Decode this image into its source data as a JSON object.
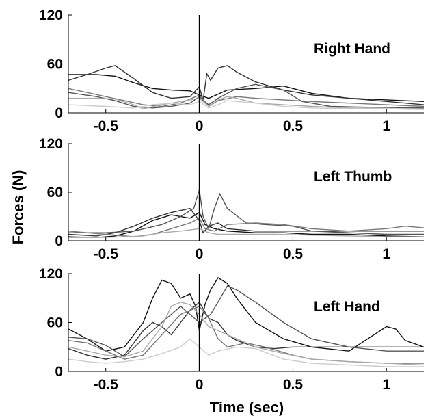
{
  "chart_data": [
    {
      "type": "line",
      "title": "Right Hand",
      "xlim": [
        -0.7,
        1.2
      ],
      "ylim": [
        0,
        120
      ],
      "xticks": [
        -0.5,
        0,
        0.5,
        1
      ],
      "xtick_labels": [
        "-0.5",
        "0",
        "0.5",
        "1"
      ],
      "yticks": [
        0,
        60,
        120
      ],
      "ytick_labels": [
        "0",
        "60",
        "120"
      ],
      "vline_x": 0,
      "series": [
        {
          "color": "#111111",
          "x": [
            -0.7,
            -0.55,
            -0.45,
            -0.35,
            -0.25,
            -0.15,
            -0.05,
            0,
            0.05,
            0.15,
            0.3,
            0.45,
            0.6,
            0.8,
            1.0,
            1.2
          ],
          "y": [
            47,
            47,
            45,
            37,
            30,
            28,
            27,
            22,
            18,
            28,
            30,
            33,
            24,
            18,
            16,
            14
          ]
        },
        {
          "color": "#333333",
          "x": [
            -0.7,
            -0.6,
            -0.5,
            -0.45,
            -0.35,
            -0.25,
            -0.15,
            -0.05,
            0,
            0.02,
            0.04,
            0.06,
            0.1,
            0.15,
            0.2,
            0.3,
            0.45,
            0.6,
            0.8,
            1.0,
            1.2
          ],
          "y": [
            40,
            47,
            55,
            58,
            42,
            25,
            18,
            20,
            32,
            15,
            48,
            40,
            55,
            58,
            50,
            38,
            28,
            22,
            18,
            14,
            10
          ]
        },
        {
          "color": "#555555",
          "x": [
            -0.7,
            -0.55,
            -0.45,
            -0.35,
            -0.25,
            -0.15,
            -0.05,
            0,
            0.05,
            0.1,
            0.2,
            0.3,
            0.45,
            0.55,
            0.7,
            0.9,
            1.2
          ],
          "y": [
            25,
            20,
            15,
            8,
            6,
            8,
            12,
            20,
            10,
            18,
            30,
            35,
            28,
            14,
            8,
            7,
            6
          ]
        },
        {
          "color": "#777777",
          "x": [
            -0.7,
            -0.6,
            -0.5,
            -0.4,
            -0.3,
            -0.2,
            -0.1,
            0,
            0.05,
            0.1,
            0.2,
            0.3,
            0.45,
            0.6,
            0.8,
            1.0,
            1.2
          ],
          "y": [
            30,
            25,
            20,
            15,
            10,
            8,
            12,
            22,
            8,
            15,
            20,
            18,
            16,
            14,
            12,
            10,
            8
          ]
        },
        {
          "color": "#aaaaaa",
          "x": [
            -0.7,
            -0.55,
            -0.45,
            -0.35,
            -0.3,
            -0.2,
            -0.1,
            0,
            0.05,
            0.1,
            0.15,
            0.2,
            0.3,
            0.45,
            0.6,
            0.8,
            1.0,
            1.2
          ],
          "y": [
            18,
            18,
            17,
            10,
            5,
            10,
            14,
            18,
            8,
            16,
            20,
            18,
            12,
            10,
            8,
            6,
            5,
            5
          ]
        },
        {
          "color": "#cccccc",
          "x": [
            -0.7,
            -0.5,
            -0.35,
            -0.25,
            -0.15,
            -0.05,
            0,
            0.05,
            0.1,
            0.15,
            0.3,
            0.45,
            0.6,
            0.8,
            1.0,
            1.2
          ],
          "y": [
            10,
            8,
            6,
            10,
            12,
            10,
            14,
            6,
            10,
            15,
            12,
            8,
            6,
            5,
            5,
            4
          ]
        }
      ]
    },
    {
      "type": "line",
      "title": "Left Thumb",
      "xlim": [
        -0.7,
        1.2
      ],
      "ylim": [
        0,
        120
      ],
      "xticks": [
        -0.5,
        0,
        0.5,
        1
      ],
      "xtick_labels": [
        "-0.5",
        "0",
        "0.5",
        "1"
      ],
      "yticks": [
        0,
        60,
        120
      ],
      "ytick_labels": [
        "0",
        "60",
        "120"
      ],
      "vline_x": 0,
      "series": [
        {
          "color": "#111111",
          "x": [
            -0.7,
            -0.55,
            -0.45,
            -0.35,
            -0.25,
            -0.15,
            -0.05,
            0,
            0.03,
            0.08,
            0.15,
            0.3,
            0.45,
            0.6,
            0.8,
            1.0,
            1.2
          ],
          "y": [
            5,
            4,
            6,
            12,
            25,
            32,
            28,
            35,
            20,
            15,
            12,
            10,
            10,
            8,
            8,
            6,
            5
          ]
        },
        {
          "color": "#333333",
          "x": [
            -0.7,
            -0.55,
            -0.45,
            -0.35,
            -0.25,
            -0.15,
            -0.05,
            0,
            0.02,
            0.05,
            0.1,
            0.15,
            0.3,
            0.45,
            0.6,
            0.8,
            1.0,
            1.2
          ],
          "y": [
            8,
            6,
            10,
            18,
            28,
            35,
            40,
            25,
            10,
            18,
            22,
            15,
            12,
            12,
            12,
            12,
            12,
            12
          ]
        },
        {
          "color": "#555555",
          "x": [
            -0.7,
            -0.5,
            -0.35,
            -0.2,
            -0.1,
            -0.03,
            0,
            0.02,
            0.05,
            0.08,
            0.11,
            0.15,
            0.25,
            0.35,
            0.5,
            0.6,
            0.8,
            1.0,
            1.2
          ],
          "y": [
            10,
            10,
            12,
            20,
            30,
            40,
            63,
            30,
            15,
            40,
            58,
            40,
            22,
            20,
            18,
            12,
            10,
            8,
            8
          ]
        },
        {
          "color": "#777777",
          "x": [
            -0.7,
            -0.5,
            -0.35,
            -0.25,
            -0.15,
            -0.05,
            0,
            0.03,
            0.08,
            0.15,
            0.3,
            0.45,
            0.6,
            0.8,
            1.0,
            1.1,
            1.2
          ],
          "y": [
            12,
            8,
            5,
            8,
            15,
            22,
            28,
            15,
            12,
            20,
            22,
            20,
            15,
            12,
            15,
            18,
            16
          ]
        },
        {
          "color": "#aaaaaa",
          "x": [
            -0.7,
            -0.55,
            -0.4,
            -0.3,
            -0.2,
            -0.1,
            0,
            0.05,
            0.1,
            0.2,
            0.4,
            0.6,
            0.8,
            1.0,
            1.2
          ],
          "y": [
            4,
            4,
            5,
            6,
            10,
            12,
            15,
            10,
            8,
            8,
            8,
            7,
            6,
            5,
            5
          ]
        }
      ]
    },
    {
      "type": "line",
      "title": "Left Hand",
      "xlabel": "Time (sec)",
      "xlim": [
        -0.7,
        1.2
      ],
      "ylim": [
        0,
        120
      ],
      "xticks": [
        -0.5,
        0,
        0.5,
        1
      ],
      "xtick_labels": [
        "-0.5",
        "0",
        "0.5",
        "1"
      ],
      "yticks": [
        0,
        60,
        120
      ],
      "ytick_labels": [
        "0",
        "60",
        "120"
      ],
      "vline_x": 0,
      "series": [
        {
          "color": "#111111",
          "x": [
            -0.7,
            -0.6,
            -0.5,
            -0.4,
            -0.3,
            -0.25,
            -0.2,
            -0.15,
            -0.1,
            -0.05,
            -0.02,
            0,
            0.03,
            0.06,
            0.1,
            0.15,
            0.2,
            0.3,
            0.45,
            0.6,
            0.8,
            0.9,
            1.0,
            1.05,
            1.1,
            1.2
          ],
          "y": [
            52,
            40,
            25,
            30,
            60,
            90,
            112,
            108,
            90,
            95,
            80,
            50,
            82,
            100,
            115,
            108,
            90,
            60,
            40,
            30,
            25,
            40,
            55,
            52,
            38,
            30
          ]
        },
        {
          "color": "#333333",
          "x": [
            -0.7,
            -0.6,
            -0.5,
            -0.4,
            -0.3,
            -0.25,
            -0.2,
            -0.15,
            -0.1,
            -0.05,
            0,
            0.05,
            0.1,
            0.15,
            0.2,
            0.3,
            0.4,
            0.5,
            0.6,
            0.8,
            1.0,
            1.2
          ],
          "y": [
            28,
            20,
            15,
            20,
            50,
            60,
            55,
            45,
            60,
            75,
            85,
            65,
            60,
            45,
            38,
            30,
            28,
            30,
            30,
            30,
            30,
            30
          ]
        },
        {
          "color": "#555555",
          "x": [
            -0.7,
            -0.6,
            -0.5,
            -0.4,
            -0.3,
            -0.2,
            -0.1,
            -0.05,
            0,
            0.03,
            0.06,
            0.1,
            0.15,
            0.2,
            0.3,
            0.45,
            0.6,
            0.8,
            1.0,
            1.2
          ],
          "y": [
            42,
            40,
            32,
            18,
            40,
            60,
            80,
            70,
            60,
            65,
            70,
            85,
            105,
            100,
            85,
            60,
            40,
            30,
            25,
            25
          ]
        },
        {
          "color": "#777777",
          "x": [
            -0.7,
            -0.6,
            -0.5,
            -0.4,
            -0.3,
            -0.2,
            -0.1,
            0,
            0.05,
            0.1,
            0.15,
            0.25,
            0.35,
            0.5,
            0.6,
            0.8,
            1.0,
            1.2
          ],
          "y": [
            38,
            35,
            25,
            15,
            20,
            45,
            70,
            80,
            65,
            40,
            30,
            35,
            30,
            20,
            15,
            12,
            10,
            10
          ]
        },
        {
          "color": "#aaaaaa",
          "x": [
            -0.7,
            -0.6,
            -0.5,
            -0.4,
            -0.3,
            -0.2,
            -0.15,
            -0.1,
            -0.05,
            0,
            0.05,
            0.1,
            0.2,
            0.3,
            0.45,
            0.6,
            0.8,
            1.0,
            1.2
          ],
          "y": [
            30,
            25,
            20,
            18,
            25,
            55,
            80,
            85,
            82,
            70,
            55,
            50,
            40,
            30,
            22,
            15,
            12,
            10,
            8
          ]
        },
        {
          "color": "#cccccc",
          "x": [
            -0.7,
            -0.6,
            -0.5,
            -0.4,
            -0.3,
            -0.2,
            -0.1,
            -0.05,
            0,
            0.05,
            0.1,
            0.2,
            0.3,
            0.45,
            0.6,
            0.8,
            1.0,
            1.2
          ],
          "y": [
            15,
            12,
            10,
            12,
            15,
            22,
            30,
            40,
            30,
            20,
            25,
            30,
            28,
            15,
            10,
            8,
            6,
            6
          ]
        }
      ]
    }
  ],
  "shared_ylabel": "Forces (N)",
  "shared_xlabel": "Time (sec)"
}
